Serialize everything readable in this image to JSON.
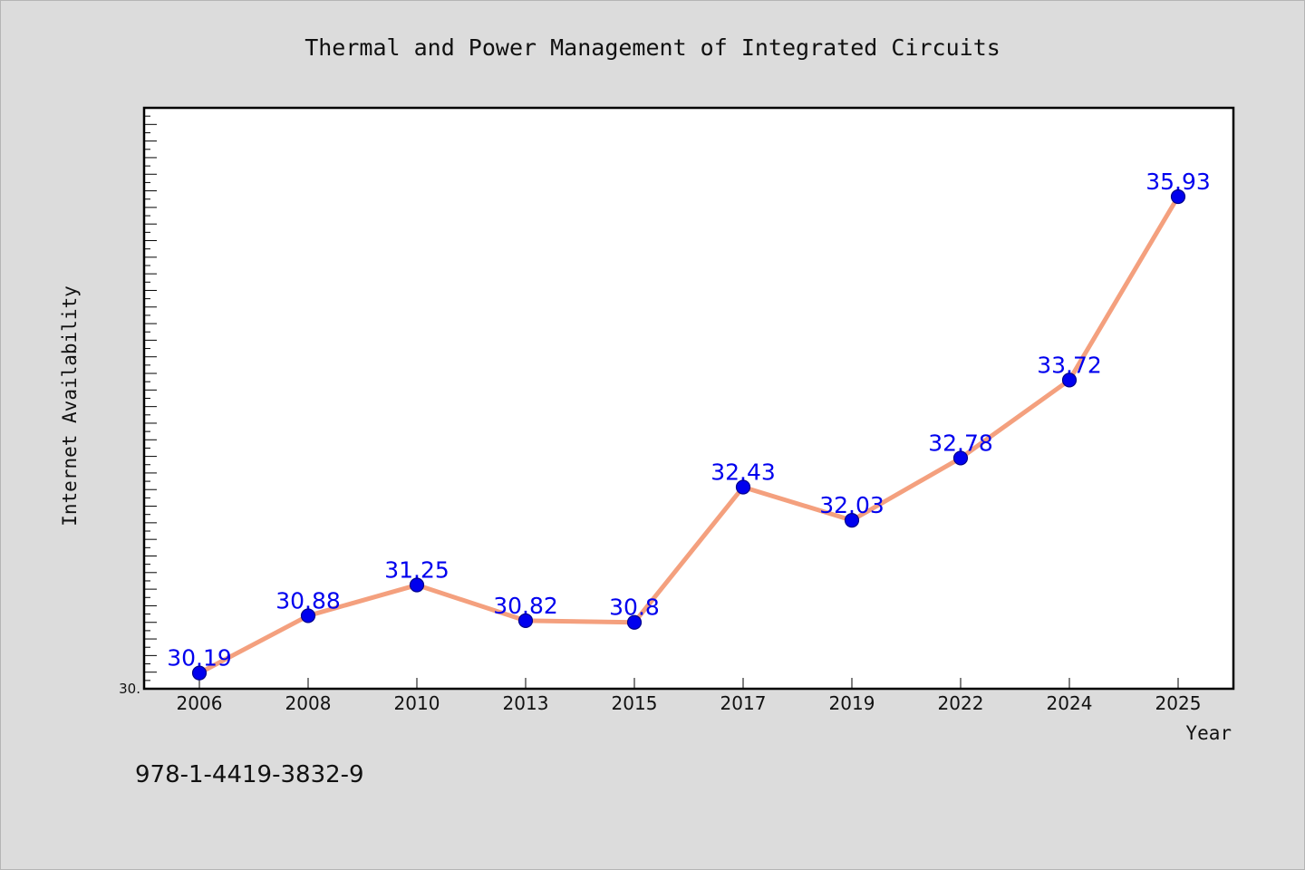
{
  "chart_data": {
    "type": "line",
    "title": "Thermal and Power Management of Integrated Circuits",
    "xlabel": "Year",
    "ylabel": "Internet Availability",
    "categories": [
      "2006",
      "2008",
      "2010",
      "2013",
      "2015",
      "2017",
      "2019",
      "2022",
      "2024",
      "2025"
    ],
    "series": [
      {
        "values": [
          30.19,
          30.88,
          31.25,
          30.82,
          30.8,
          32.43,
          32.03,
          32.78,
          33.72,
          35.93
        ],
        "labels": [
          "30.19",
          "30.88",
          "31.25",
          "30.82",
          "30.8",
          "32.43",
          "32.03",
          "32.78",
          "33.72",
          "35.93"
        ]
      }
    ],
    "ylim": [
      30,
      37
    ],
    "ytick_labels": [
      "30."
    ],
    "grid": false,
    "legend": "none",
    "colors": {
      "line": "#f4a07e",
      "marker": "#0000ee",
      "marker_edge": "#00008b",
      "data_label": "#0000ee",
      "background": "#dcdcdc",
      "plot_background": "#ffffff"
    }
  },
  "footer": {
    "text": "978-1-4419-3832-9"
  }
}
